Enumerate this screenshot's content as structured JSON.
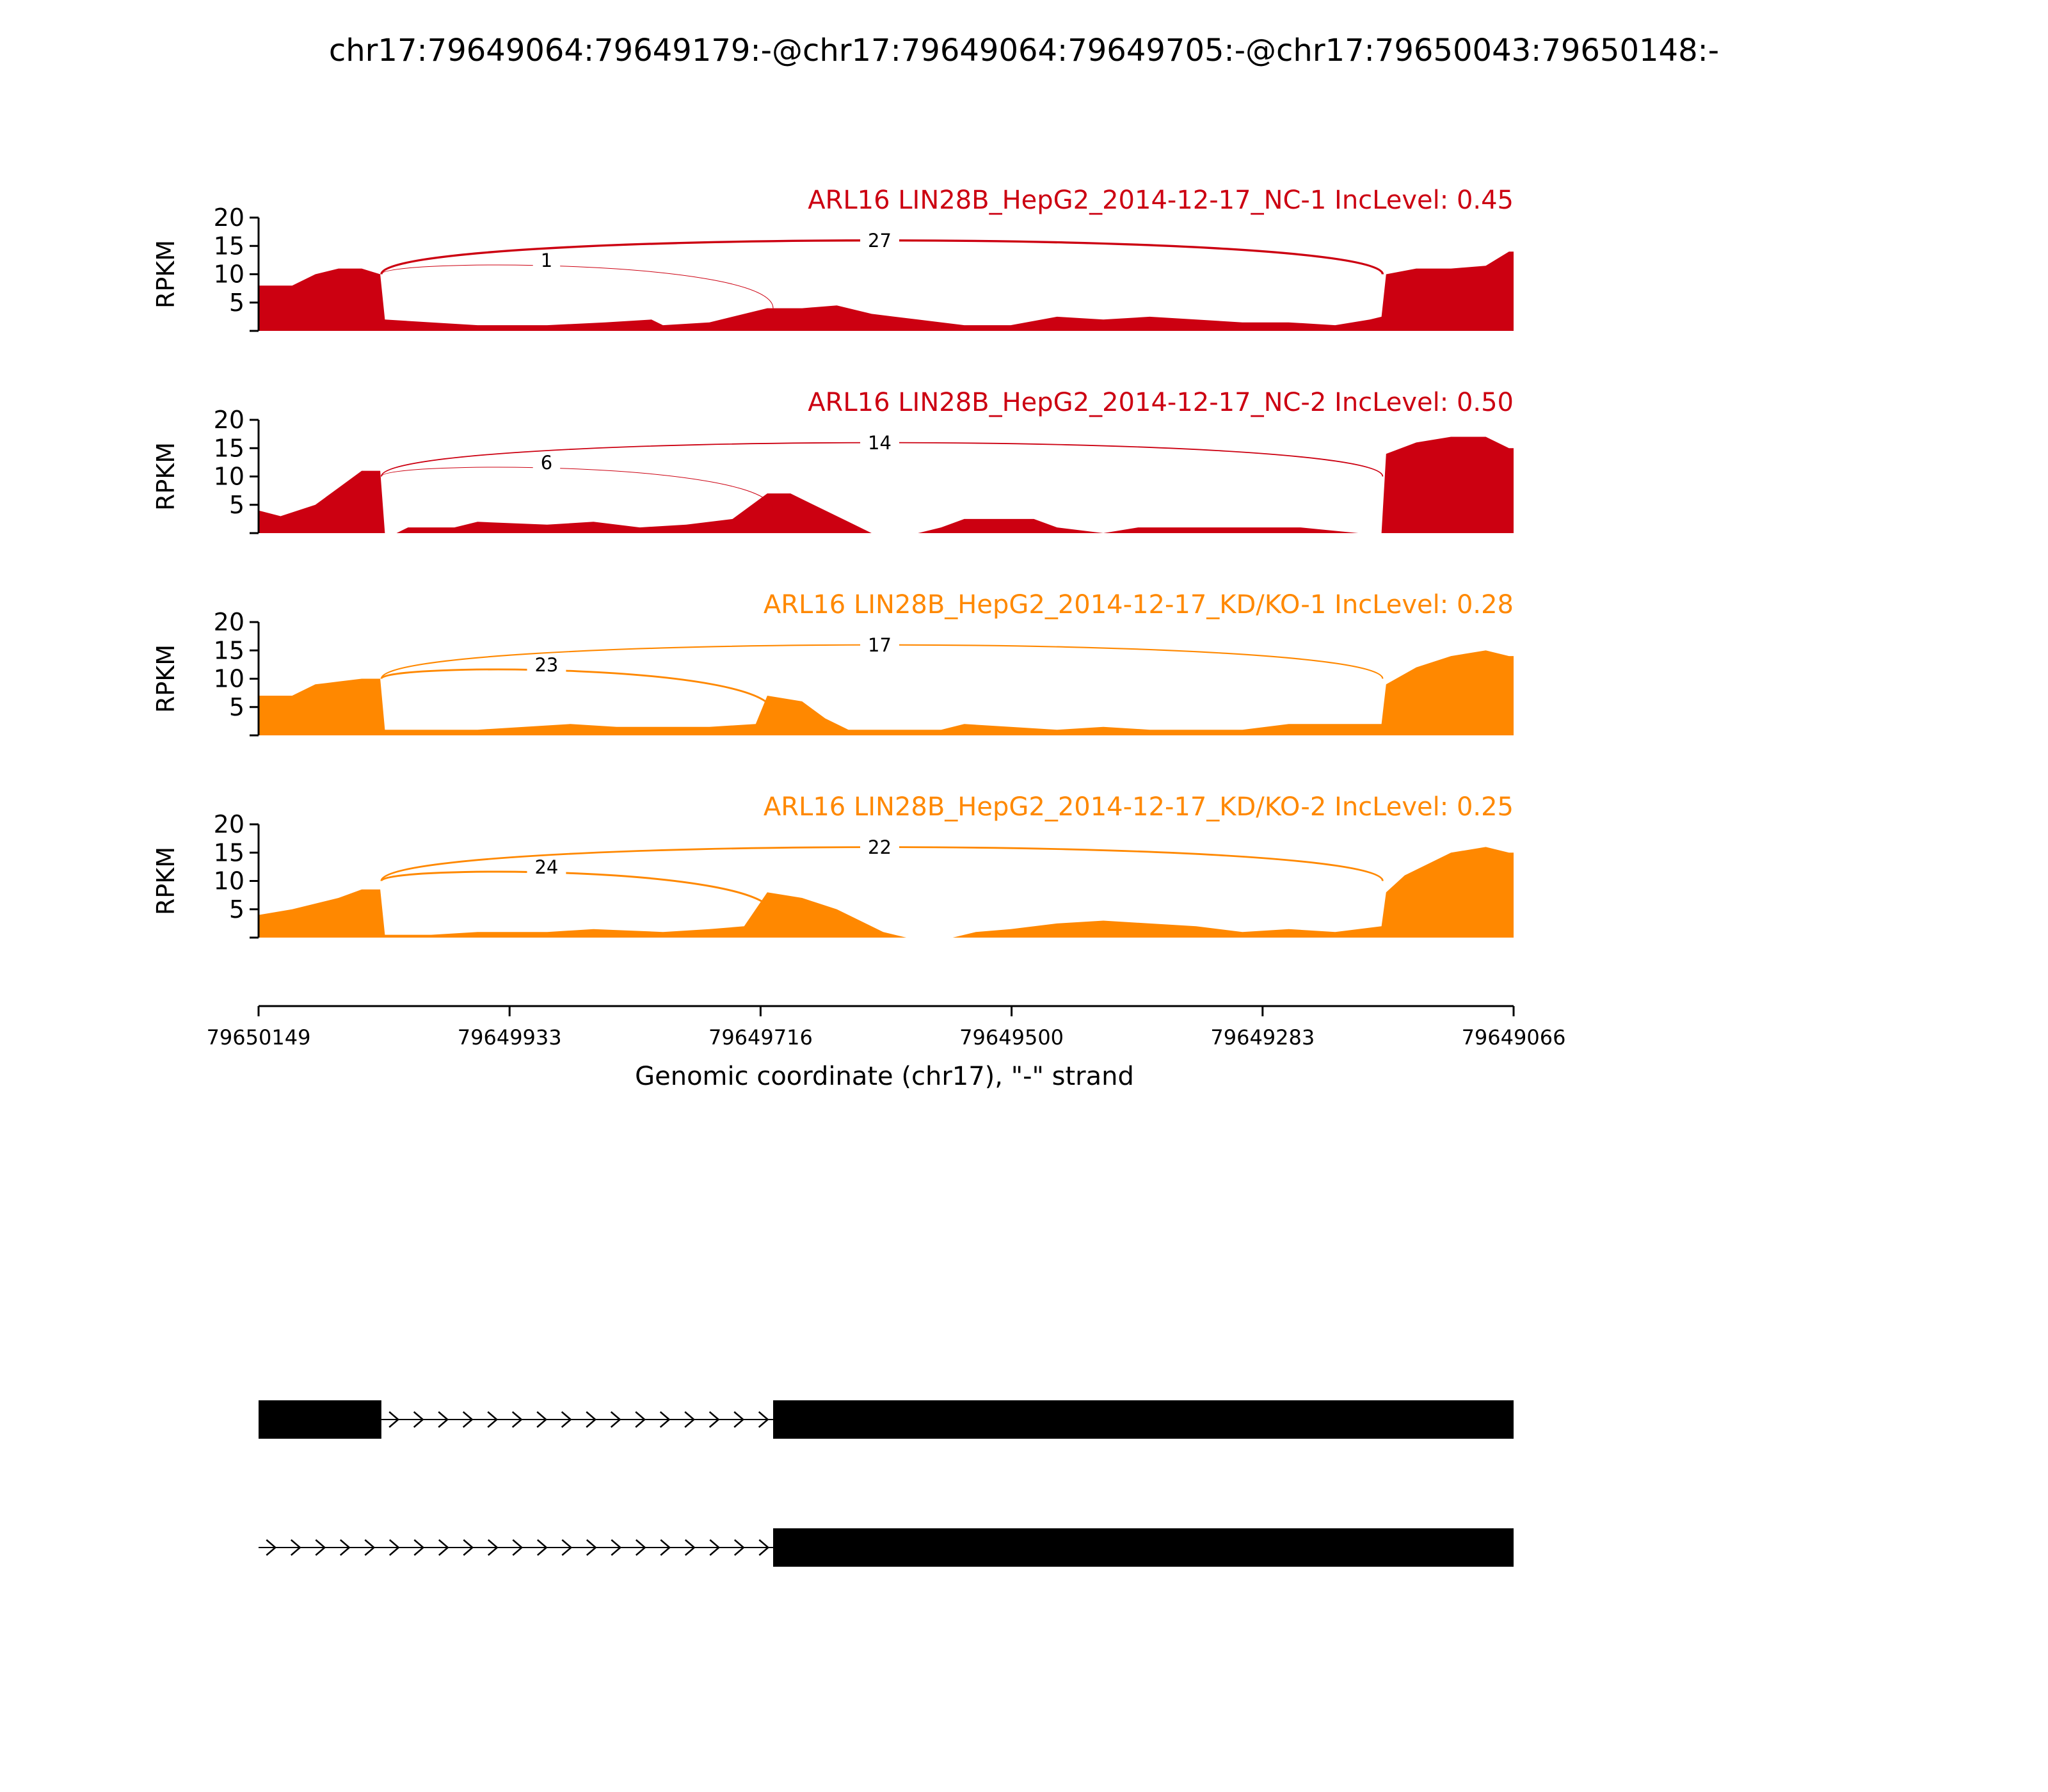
{
  "title": "chr17:79649064:79649179:-@chr17:79649064:79649705:-@chr17:79650043:79650148:-",
  "chart_data": {
    "type": "area",
    "title": "chr17:79649064:79649179:-@chr17:79649064:79649705:-@chr17:79650043:79650148:-",
    "xlabel": "Genomic coordinate (chr17), \"-\" strand",
    "ylabel": "RPKM",
    "xlim": [
      79650149,
      79649066
    ],
    "x_ticks": [
      "79650149",
      "79649933",
      "79649716",
      "79649500",
      "79649283",
      "79649066"
    ],
    "ylim": [
      0,
      20
    ],
    "y_ticks": [
      "5",
      "10",
      "15",
      "20"
    ],
    "grid": false,
    "tracks": [
      {
        "name": "ARL16 LIN28B_HepG2_2014-12-17_NC-1 IncLevel: 0.45",
        "color": "#cc0011",
        "coverage": [
          [
            79650149,
            8
          ],
          [
            79650120,
            8
          ],
          [
            79650100,
            10
          ],
          [
            79650080,
            11
          ],
          [
            79650060,
            11
          ],
          [
            79650044,
            10
          ],
          [
            79650040,
            2
          ],
          [
            79650000,
            1.5
          ],
          [
            79649960,
            1
          ],
          [
            79649900,
            1
          ],
          [
            79649850,
            1.5
          ],
          [
            79649810,
            2
          ],
          [
            79649800,
            1
          ],
          [
            79649760,
            1.5
          ],
          [
            79649710,
            4
          ],
          [
            79649680,
            4
          ],
          [
            79649650,
            4.5
          ],
          [
            79649620,
            3
          ],
          [
            79649580,
            2
          ],
          [
            79649540,
            1
          ],
          [
            79649500,
            1
          ],
          [
            79649460,
            2.5
          ],
          [
            79649420,
            2
          ],
          [
            79649380,
            2.5
          ],
          [
            79649340,
            2
          ],
          [
            79649300,
            1.5
          ],
          [
            79649260,
            1.5
          ],
          [
            79649220,
            1
          ],
          [
            79649190,
            2
          ],
          [
            79649180,
            2.5
          ],
          [
            79649176,
            10
          ],
          [
            79649150,
            11
          ],
          [
            79649120,
            11
          ],
          [
            79649090,
            11.5
          ],
          [
            79649070,
            14
          ],
          [
            79649066,
            14
          ]
        ],
        "junctions": [
          {
            "label": "1",
            "from": 79650043,
            "to": 79649705
          },
          {
            "label": "27",
            "from": 79650043,
            "to": 79649179
          }
        ]
      },
      {
        "name": "ARL16 LIN28B_HepG2_2014-12-17_NC-2 IncLevel: 0.50",
        "color": "#cc0011",
        "coverage": [
          [
            79650149,
            4
          ],
          [
            79650130,
            3
          ],
          [
            79650100,
            5
          ],
          [
            79650080,
            8
          ],
          [
            79650060,
            11
          ],
          [
            79650044,
            11
          ],
          [
            79650040,
            0
          ],
          [
            79650030,
            0
          ],
          [
            79650020,
            1
          ],
          [
            79649980,
            1
          ],
          [
            79649960,
            2
          ],
          [
            79649900,
            1.5
          ],
          [
            79649860,
            2
          ],
          [
            79649820,
            1
          ],
          [
            79649780,
            1.5
          ],
          [
            79649740,
            2.5
          ],
          [
            79649710,
            7
          ],
          [
            79649690,
            7
          ],
          [
            79649670,
            5
          ],
          [
            79649640,
            2
          ],
          [
            79649620,
            0
          ],
          [
            79649580,
            0
          ],
          [
            79649560,
            1
          ],
          [
            79649540,
            2.5
          ],
          [
            79649480,
            2.5
          ],
          [
            79649460,
            1
          ],
          [
            79649420,
            0
          ],
          [
            79649390,
            1
          ],
          [
            79649340,
            1
          ],
          [
            79649300,
            1
          ],
          [
            79649250,
            1
          ],
          [
            79649200,
            0
          ],
          [
            79649180,
            0
          ],
          [
            79649176,
            14
          ],
          [
            79649150,
            16
          ],
          [
            79649120,
            17
          ],
          [
            79649090,
            17
          ],
          [
            79649070,
            15
          ],
          [
            79649066,
            15
          ]
        ],
        "junctions": [
          {
            "label": "6",
            "from": 79650043,
            "to": 79649705
          },
          {
            "label": "14",
            "from": 79650043,
            "to": 79649179
          }
        ]
      },
      {
        "name": "ARL16 LIN28B_HepG2_2014-12-17_KD/KO-1 IncLevel: 0.28",
        "color": "#ff8800",
        "coverage": [
          [
            79650149,
            7
          ],
          [
            79650120,
            7
          ],
          [
            79650100,
            9
          ],
          [
            79650080,
            9.5
          ],
          [
            79650060,
            10
          ],
          [
            79650044,
            10
          ],
          [
            79650040,
            1
          ],
          [
            79650000,
            1
          ],
          [
            79649960,
            1
          ],
          [
            79649920,
            1.5
          ],
          [
            79649880,
            2
          ],
          [
            79649840,
            1.5
          ],
          [
            79649800,
            1.5
          ],
          [
            79649760,
            1.5
          ],
          [
            79649720,
            2
          ],
          [
            79649710,
            7
          ],
          [
            79649680,
            6
          ],
          [
            79649660,
            3
          ],
          [
            79649640,
            1
          ],
          [
            79649600,
            1
          ],
          [
            79649560,
            1
          ],
          [
            79649540,
            2
          ],
          [
            79649500,
            1.5
          ],
          [
            79649460,
            1
          ],
          [
            79649420,
            1.5
          ],
          [
            79649380,
            1
          ],
          [
            79649340,
            1
          ],
          [
            79649300,
            1
          ],
          [
            79649260,
            2
          ],
          [
            79649220,
            2
          ],
          [
            79649180,
            2
          ],
          [
            79649176,
            9
          ],
          [
            79649150,
            12
          ],
          [
            79649120,
            14
          ],
          [
            79649090,
            15
          ],
          [
            79649070,
            14
          ],
          [
            79649066,
            14
          ]
        ],
        "junctions": [
          {
            "label": "23",
            "from": 79650043,
            "to": 79649705
          },
          {
            "label": "17",
            "from": 79650043,
            "to": 79649179
          }
        ]
      },
      {
        "name": "ARL16 LIN28B_HepG2_2014-12-17_KD/KO-2 IncLevel: 0.25",
        "color": "#ff8800",
        "coverage": [
          [
            79650149,
            4
          ],
          [
            79650120,
            5
          ],
          [
            79650100,
            6
          ],
          [
            79650080,
            7
          ],
          [
            79650060,
            8.5
          ],
          [
            79650044,
            8.5
          ],
          [
            79650040,
            0.5
          ],
          [
            79650000,
            0.5
          ],
          [
            79649960,
            1
          ],
          [
            79649900,
            1
          ],
          [
            79649860,
            1.5
          ],
          [
            79649800,
            1
          ],
          [
            79649760,
            1.5
          ],
          [
            79649730,
            2
          ],
          [
            79649710,
            8
          ],
          [
            79649680,
            7
          ],
          [
            79649650,
            5
          ],
          [
            79649630,
            3
          ],
          [
            79649610,
            1
          ],
          [
            79649590,
            0
          ],
          [
            79649550,
            0
          ],
          [
            79649530,
            1
          ],
          [
            79649500,
            1.5
          ],
          [
            79649460,
            2.5
          ],
          [
            79649420,
            3
          ],
          [
            79649380,
            2.5
          ],
          [
            79649340,
            2
          ],
          [
            79649300,
            1
          ],
          [
            79649260,
            1.5
          ],
          [
            79649220,
            1
          ],
          [
            79649180,
            2
          ],
          [
            79649176,
            8
          ],
          [
            79649160,
            11
          ],
          [
            79649140,
            13
          ],
          [
            79649120,
            15
          ],
          [
            79649090,
            16
          ],
          [
            79649070,
            15
          ],
          [
            79649066,
            15
          ]
        ],
        "junctions": [
          {
            "label": "24",
            "from": 79650043,
            "to": 79649705
          },
          {
            "label": "22",
            "from": 79650043,
            "to": 79649179
          }
        ]
      }
    ],
    "isoforms": [
      {
        "exons": [
          [
            79650149,
            79650043
          ],
          [
            79649705,
            79649066
          ]
        ],
        "introns": [
          [
            79650043,
            79649705
          ]
        ]
      },
      {
        "exons": [
          [
            79649705,
            79649066
          ]
        ],
        "introns": [
          [
            79650149,
            79649705
          ]
        ]
      }
    ]
  }
}
